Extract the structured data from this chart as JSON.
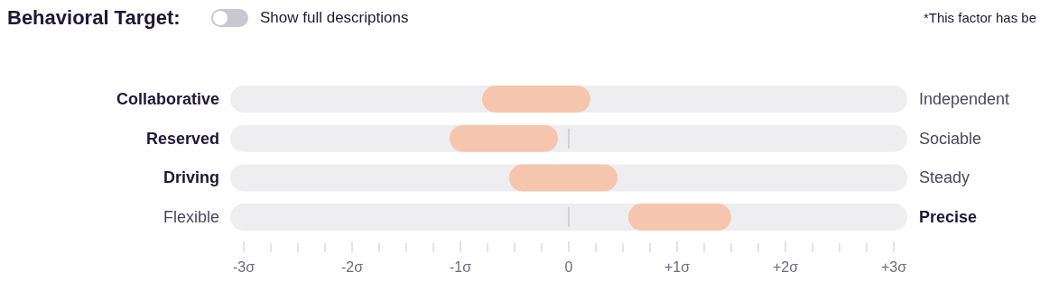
{
  "chart_data": {
    "type": "bar",
    "orientation": "horizontal",
    "title": "Behavioral Target:",
    "categories": [
      "Collaborative",
      "Reserved",
      "Driving",
      "Flexible"
    ],
    "base": [
      -0.8,
      -1.1,
      -0.55,
      0.55
    ],
    "values": [
      1.0,
      1.0,
      1.0,
      0.95
    ],
    "color": "#f5c6ad",
    "xlim": [
      -3.125,
      3.125
    ],
    "xticks": [
      {
        "value": -3,
        "label": "-3σ"
      },
      {
        "value": -2.75,
        "label": null
      },
      {
        "value": -2.5,
        "label": null
      },
      {
        "value": -2.25,
        "label": null
      },
      {
        "value": -2,
        "label": "-2σ"
      },
      {
        "value": -1.75,
        "label": null
      },
      {
        "value": -1.5,
        "label": null
      },
      {
        "value": -1.25,
        "label": null
      },
      {
        "value": -1,
        "label": "-1σ"
      },
      {
        "value": -0.75,
        "label": null
      },
      {
        "value": -0.5,
        "label": null
      },
      {
        "value": -0.25,
        "label": null
      },
      {
        "value": 0,
        "label": "0"
      },
      {
        "value": 0.25,
        "label": null
      },
      {
        "value": 0.5,
        "label": null
      },
      {
        "value": 0.75,
        "label": null
      },
      {
        "value": 1,
        "label": "+1σ"
      },
      {
        "value": 1.25,
        "label": null
      },
      {
        "value": 1.5,
        "label": null
      },
      {
        "value": 1.75,
        "label": null
      },
      {
        "value": 2,
        "label": "+2σ"
      },
      {
        "value": 2.25,
        "label": null
      },
      {
        "value": 2.5,
        "label": null
      },
      {
        "value": 2.75,
        "label": null
      },
      {
        "value": 3,
        "label": "+3σ"
      }
    ],
    "ref_lines": [
      {
        "axis": "x",
        "value": 0,
        "color": "#c8c6cc"
      }
    ],
    "annotations": [
      "Independent",
      "Sociable",
      "Steady",
      "Precise",
      "Show full descriptions",
      "*This factor has be"
    ]
  }
}
